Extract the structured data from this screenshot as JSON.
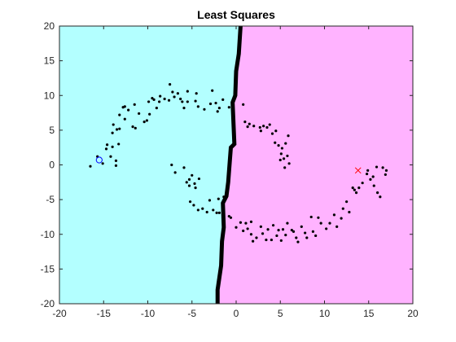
{
  "chart_data": {
    "type": "scatter",
    "title": "Least Squares",
    "xlabel": "",
    "ylabel": "",
    "xlim": [
      -20,
      20
    ],
    "ylim": [
      -20,
      20
    ],
    "xticks": [
      -20,
      -15,
      -10,
      -5,
      0,
      5,
      10,
      15,
      20
    ],
    "yticks": [
      -20,
      -15,
      -10,
      -5,
      0,
      5,
      10,
      15,
      20
    ],
    "xtick_labels": [
      "-20",
      "-15",
      "-10",
      "-5",
      "0",
      "5",
      "10",
      "15",
      "20"
    ],
    "ytick_labels": [
      "-20",
      "-15",
      "-10",
      "-5",
      "0",
      "5",
      "10",
      "15",
      "20"
    ],
    "grid": false,
    "legend": "none",
    "colors": {
      "region_left": "#b3ffff",
      "region_right": "#ffb3ff",
      "boundary": "#000000",
      "points": "#000000",
      "circle_marker": "#0000ff",
      "x_marker": "#ff0000"
    },
    "decision_boundary": [
      [
        0.5,
        20
      ],
      [
        0.3,
        16
      ],
      [
        0.0,
        13.5
      ],
      [
        -0.1,
        10
      ],
      [
        -0.4,
        9
      ],
      [
        -0.2,
        3
      ],
      [
        -0.6,
        2.5
      ],
      [
        -0.9,
        -2.5
      ],
      [
        -1.1,
        -4.5
      ],
      [
        -1.5,
        -5.5
      ],
      [
        -1.4,
        -9
      ],
      [
        -1.6,
        -11
      ],
      [
        -1.7,
        -14.5
      ],
      [
        -2.1,
        -18
      ],
      [
        -2.1,
        -20
      ]
    ],
    "special_points": [
      {
        "marker": "circle",
        "x": -15.5,
        "y": 0.7
      },
      {
        "marker": "x",
        "x": 13.8,
        "y": -0.8
      }
    ],
    "points": [
      [
        -16.5,
        -0.2
      ],
      [
        -15.7,
        1.2
      ],
      [
        -15.1,
        0.2
      ],
      [
        -14.7,
        2.3
      ],
      [
        -14.2,
        1.2
      ],
      [
        -13.6,
        0.6
      ],
      [
        -13.6,
        -0.1
      ],
      [
        -14.6,
        2.9
      ],
      [
        -14.0,
        2.6
      ],
      [
        -13.3,
        3.0
      ],
      [
        -14.0,
        4.6
      ],
      [
        -13.5,
        5.1
      ],
      [
        -13.2,
        5.2
      ],
      [
        -13.9,
        5.8
      ],
      [
        -13.2,
        7.2
      ],
      [
        -12.6,
        6.6
      ],
      [
        -12.8,
        8.3
      ],
      [
        -12.6,
        8.4
      ],
      [
        -11.7,
        5.5
      ],
      [
        -11.4,
        5.3
      ],
      [
        -12.2,
        7.9
      ],
      [
        -11.5,
        8.7
      ],
      [
        -11.0,
        7.4
      ],
      [
        -10.4,
        6.2
      ],
      [
        -10.1,
        6.4
      ],
      [
        -9.8,
        7.3
      ],
      [
        -9.5,
        9.6
      ],
      [
        -9.9,
        9.1
      ],
      [
        -9.3,
        9.4
      ],
      [
        -9.0,
        8.2
      ],
      [
        -8.6,
        9.9
      ],
      [
        -8.7,
        9.1
      ],
      [
        -8.1,
        9.5
      ],
      [
        -7.6,
        9.3
      ],
      [
        -7.5,
        11.6
      ],
      [
        -7.2,
        10.5
      ],
      [
        -7.0,
        9.8
      ],
      [
        -6.6,
        10.3
      ],
      [
        -6.1,
        9.1
      ],
      [
        -6.3,
        9.5
      ],
      [
        -5.9,
        8.2
      ],
      [
        -5.5,
        9.1
      ],
      [
        -5.5,
        10.6
      ],
      [
        -4.5,
        10.3
      ],
      [
        -4.6,
        9.2
      ],
      [
        -4.3,
        8.4
      ],
      [
        -3.6,
        8.0
      ],
      [
        -2.9,
        8.8
      ],
      [
        -2.7,
        10.7
      ],
      [
        -2.3,
        8.9
      ],
      [
        -2.1,
        7.7
      ],
      [
        -1.9,
        8.2
      ],
      [
        -1.5,
        9.4
      ],
      [
        -0.8,
        8.3
      ],
      [
        -0.1,
        10.5
      ],
      [
        0.8,
        8.7
      ],
      [
        1.0,
        6.2
      ],
      [
        1.3,
        5.5
      ],
      [
        1.5,
        5.9
      ],
      [
        2.0,
        5.6
      ],
      [
        2.7,
        5.4
      ],
      [
        2.8,
        4.9
      ],
      [
        3.1,
        5.6
      ],
      [
        3.5,
        5.4
      ],
      [
        3.8,
        5.8
      ],
      [
        4.1,
        4.5
      ],
      [
        4.5,
        4.9
      ],
      [
        4.4,
        3.2
      ],
      [
        4.8,
        2.8
      ],
      [
        5.2,
        2.4
      ],
      [
        5.6,
        3.1
      ],
      [
        5.9,
        4.2
      ],
      [
        5.4,
        0.9
      ],
      [
        5.1,
        1.6
      ],
      [
        5.0,
        0.7
      ],
      [
        5.8,
        1.3
      ],
      [
        6.0,
        0.2
      ],
      [
        5.5,
        -0.4
      ],
      [
        -7.3,
        0.0
      ],
      [
        -6.9,
        -1.1
      ],
      [
        -5.9,
        -0.4
      ],
      [
        -5.3,
        -2.1
      ],
      [
        -5.0,
        -1.5
      ],
      [
        -4.7,
        -2.7
      ],
      [
        -4.2,
        -2.0
      ],
      [
        -5.3,
        -3.0
      ],
      [
        -5.6,
        -2.5
      ],
      [
        -4.6,
        -3.3
      ],
      [
        -5.2,
        -5.3
      ],
      [
        -4.8,
        -5.8
      ],
      [
        -4.3,
        -6.5
      ],
      [
        -3.8,
        -6.3
      ],
      [
        -3.3,
        -6.8
      ],
      [
        -3.0,
        -5.1
      ],
      [
        -2.6,
        -6.5
      ],
      [
        -2.2,
        -6.9
      ],
      [
        -1.9,
        -6.9
      ],
      [
        -1.4,
        -4.6
      ],
      [
        -2.0,
        -4.9
      ],
      [
        -0.8,
        -7.4
      ],
      [
        -0.6,
        -7.6
      ],
      [
        0.0,
        -9.0
      ],
      [
        0.5,
        -8.3
      ],
      [
        0.8,
        -9.5
      ],
      [
        1.1,
        -8.4
      ],
      [
        1.7,
        -8.2
      ],
      [
        1.3,
        -9.2
      ],
      [
        1.7,
        -10.0
      ],
      [
        1.9,
        -11.0
      ],
      [
        2.3,
        -10.5
      ],
      [
        2.8,
        -8.9
      ],
      [
        3.0,
        -9.9
      ],
      [
        3.4,
        -10.8
      ],
      [
        3.6,
        -9.3
      ],
      [
        4.0,
        -10.8
      ],
      [
        4.2,
        -8.7
      ],
      [
        4.6,
        -10.2
      ],
      [
        4.8,
        -9.4
      ],
      [
        5.1,
        -10.9
      ],
      [
        5.3,
        -9.3
      ],
      [
        5.6,
        -10.1
      ],
      [
        5.8,
        -8.4
      ],
      [
        6.3,
        -9.4
      ],
      [
        6.8,
        -10.5
      ],
      [
        6.5,
        -9.6
      ],
      [
        7.0,
        -11.1
      ],
      [
        7.4,
        -8.9
      ],
      [
        7.8,
        -9.8
      ],
      [
        8.0,
        -10.5
      ],
      [
        8.7,
        -9.6
      ],
      [
        9.0,
        -10.2
      ],
      [
        8.5,
        -7.5
      ],
      [
        9.3,
        -7.6
      ],
      [
        9.6,
        -8.4
      ],
      [
        10.2,
        -9.2
      ],
      [
        10.6,
        -8.4
      ],
      [
        11.1,
        -7.2
      ],
      [
        11.4,
        -8.9
      ],
      [
        11.9,
        -7.7
      ],
      [
        12.1,
        -6.3
      ],
      [
        12.8,
        -6.8
      ],
      [
        12.5,
        -5.3
      ],
      [
        13.4,
        -3.6
      ],
      [
        13.9,
        -3.3
      ],
      [
        14.3,
        -2.6
      ],
      [
        14.8,
        -1.3
      ],
      [
        14.9,
        -0.8
      ],
      [
        15.2,
        -2.1
      ],
      [
        15.5,
        -1.7
      ],
      [
        15.6,
        -3.0
      ],
      [
        16.0,
        -4.0
      ],
      [
        16.3,
        -4.6
      ],
      [
        15.9,
        -0.3
      ],
      [
        16.6,
        -0.4
      ],
      [
        17.0,
        -0.8
      ],
      [
        16.9,
        -1.4
      ],
      [
        13.6,
        -4.0
      ],
      [
        13.2,
        -3.3
      ]
    ]
  }
}
